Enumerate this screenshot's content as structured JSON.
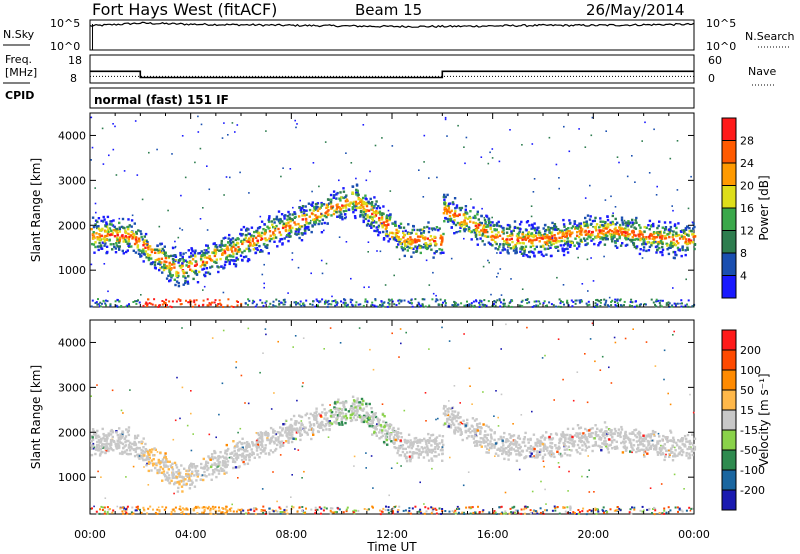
{
  "header": {
    "station": "Fort Hays West (fitACF)",
    "beam": "Beam 15",
    "date": "26/May/2014"
  },
  "labels": {
    "nsky": "N.Sky",
    "nsearch": "N.Search",
    "freq": "Freq.",
    "mhz": "[MHz]",
    "nave": "Nave",
    "cpid": "CPID",
    "cpid_value": "normal (fast) 151 IF",
    "xlabel": "Time UT",
    "ylabel": "Slant Range [km]",
    "power_label": "Power [dB]",
    "velocity_label": "Velocity [m s⁻¹]"
  },
  "chart_data": [
    {
      "type": "line",
      "name": "noise-panel",
      "x": [
        0,
        2,
        4,
        6,
        8,
        10,
        12,
        14,
        16,
        18,
        20,
        22,
        24
      ],
      "values": [
        4.3,
        4.8,
        4.6,
        4.5,
        4.4,
        4.3,
        4.2,
        4.2,
        4.3,
        4.4,
        4.4,
        4.5,
        4.6
      ],
      "ylim_left": [
        "10^0",
        "10^5"
      ],
      "ylim_right": [
        "10^0",
        "10^5"
      ],
      "xlim": [
        0,
        24
      ]
    },
    {
      "type": "line",
      "name": "frequency-panel",
      "series": [
        {
          "name": "Freq.",
          "x": [
            0,
            2,
            2,
            14,
            14,
            24
          ],
          "values": [
            13.3,
            13.3,
            10.5,
            10.5,
            13.3,
            13.3
          ]
        },
        {
          "name": "Nave",
          "x": [
            0,
            24
          ],
          "values": [
            11,
            11
          ]
        }
      ],
      "left_ticks": [
        "18",
        "8"
      ],
      "right_ticks": [
        "60",
        "0"
      ],
      "xlim": [
        0,
        24
      ]
    },
    {
      "type": "heatmap",
      "name": "power",
      "xlim": [
        0,
        24
      ],
      "ylim": [
        180,
        4500
      ],
      "yticks": [
        "1000",
        "2000",
        "3000",
        "4000"
      ],
      "xticks": [
        "00:00",
        "04:00",
        "08:00",
        "12:00",
        "16:00",
        "20:00",
        "00:00"
      ],
      "colorbar_ticks": [
        "4",
        "8",
        "12",
        "16",
        "20",
        "24",
        "28"
      ],
      "colorbar_colors": [
        "#1a1aff",
        "#1a4fb0",
        "#2e7d4f",
        "#3aa84a",
        "#dede1a",
        "#ff9a00",
        "#ff5a00",
        "#ff1a1a"
      ]
    },
    {
      "type": "heatmap",
      "name": "velocity",
      "xlim": [
        0,
        24
      ],
      "ylim": [
        180,
        4500
      ],
      "yticks": [
        "1000",
        "2000",
        "3000",
        "4000"
      ],
      "xticks": [
        "00:00",
        "04:00",
        "08:00",
        "12:00",
        "16:00",
        "20:00",
        "00:00"
      ],
      "colorbar_ticks": [
        "200",
        "100",
        "50",
        "15",
        "-15",
        "-50",
        "-100",
        "-200"
      ],
      "colorbar_colors": [
        "#1a1ab0",
        "#1a66a0",
        "#2e8a4f",
        "#8ad24a",
        "#c8c8c8",
        "#ffb84a",
        "#ff8a00",
        "#ff4a00",
        "#ff1a1a"
      ]
    }
  ]
}
